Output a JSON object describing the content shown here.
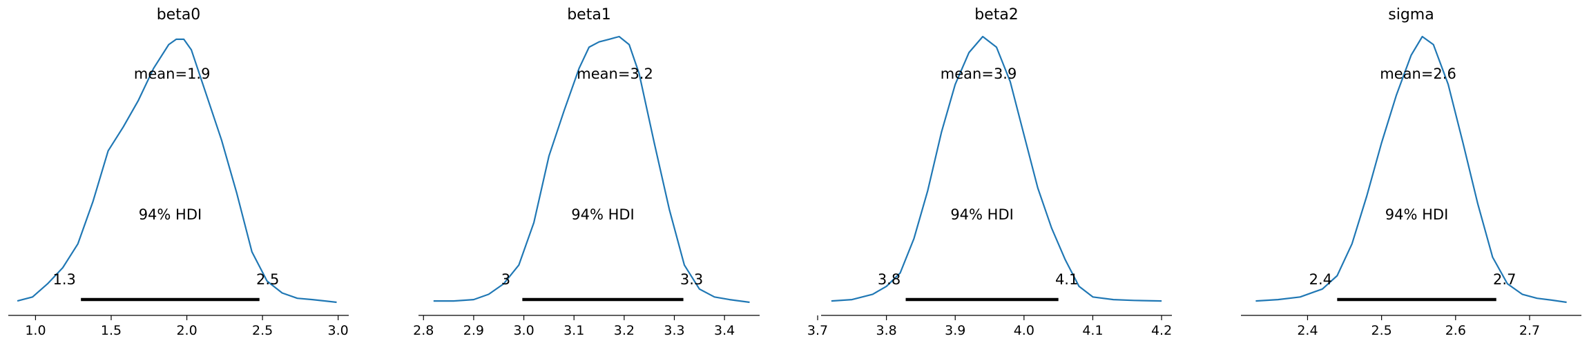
{
  "chart_data": [
    {
      "type": "area",
      "title": "beta0",
      "mean_label": "mean=1.9",
      "hdi_label": "94% HDI",
      "hdi": [
        1.3,
        2.48
      ],
      "hdi_tick_labels": [
        "1.3",
        "2.5"
      ],
      "xlim": [
        0.82,
        3.07
      ],
      "ticks": [
        1.0,
        1.5,
        2.0,
        2.5,
        3.0
      ],
      "tick_labels": [
        "1.0",
        "1.5",
        "2.0",
        "2.5",
        "3.0"
      ],
      "ylim": [
        0,
        1.0
      ],
      "color": "#1f77b4",
      "density": {
        "x": [
          0.88,
          0.98,
          1.08,
          1.18,
          1.28,
          1.38,
          1.48,
          1.58,
          1.68,
          1.78,
          1.88,
          1.93,
          1.98,
          2.03,
          2.13,
          2.23,
          2.33,
          2.43,
          2.53,
          2.63,
          2.73,
          2.83,
          2.93,
          2.99
        ],
        "y": [
          0.005,
          0.02,
          0.07,
          0.13,
          0.22,
          0.38,
          0.57,
          0.66,
          0.76,
          0.88,
          0.97,
          0.99,
          0.99,
          0.95,
          0.78,
          0.61,
          0.41,
          0.19,
          0.08,
          0.035,
          0.015,
          0.01,
          0.004,
          0.0
        ]
      }
    },
    {
      "type": "area",
      "title": "beta1",
      "mean_label": "mean=3.2",
      "hdi_label": "94% HDI",
      "hdi": [
        2.997,
        3.318
      ],
      "hdi_tick_labels": [
        "3",
        "3.3"
      ],
      "xlim": [
        2.79,
        3.47
      ],
      "ticks": [
        2.8,
        2.9,
        3.0,
        3.1,
        3.2,
        3.3,
        3.4
      ],
      "tick_labels": [
        "2.8",
        "2.9",
        "3.0",
        "3.1",
        "3.2",
        "3.3",
        "3.4"
      ],
      "ylim": [
        0,
        1.0
      ],
      "color": "#1f77b4",
      "density": {
        "x": [
          2.82,
          2.86,
          2.9,
          2.93,
          2.96,
          2.99,
          3.02,
          3.05,
          3.08,
          3.11,
          3.13,
          3.15,
          3.17,
          3.19,
          3.21,
          3.23,
          3.26,
          3.29,
          3.32,
          3.35,
          3.38,
          3.41,
          3.45
        ],
        "y": [
          0.005,
          0.005,
          0.01,
          0.03,
          0.07,
          0.14,
          0.3,
          0.55,
          0.72,
          0.88,
          0.96,
          0.98,
          0.99,
          1.0,
          0.97,
          0.86,
          0.6,
          0.35,
          0.14,
          0.05,
          0.02,
          0.01,
          0.0
        ]
      }
    },
    {
      "type": "area",
      "title": "beta2",
      "mean_label": "mean=3.9",
      "hdi_label": "94% HDI",
      "hdi": [
        3.828,
        4.05
      ],
      "hdi_tick_labels": [
        "3.8",
        "4.1"
      ],
      "xlim": [
        3.705,
        4.215
      ],
      "ticks": [
        3.7,
        3.8,
        3.9,
        4.0,
        4.1,
        4.2
      ],
      "tick_labels": [
        "3.7",
        "3.8",
        "3.9",
        "4.0",
        "4.1",
        "4.2"
      ],
      "ylim": [
        0,
        1.0
      ],
      "color": "#1f77b4",
      "density": {
        "x": [
          3.72,
          3.75,
          3.78,
          3.8,
          3.82,
          3.84,
          3.86,
          3.88,
          3.9,
          3.92,
          3.94,
          3.96,
          3.98,
          4.0,
          4.02,
          4.04,
          4.06,
          4.08,
          4.1,
          4.13,
          4.16,
          4.2
        ],
        "y": [
          0.005,
          0.01,
          0.03,
          0.06,
          0.11,
          0.24,
          0.42,
          0.64,
          0.82,
          0.94,
          1.0,
          0.96,
          0.83,
          0.63,
          0.43,
          0.28,
          0.16,
          0.06,
          0.02,
          0.01,
          0.007,
          0.005
        ]
      }
    },
    {
      "type": "area",
      "title": "sigma",
      "mean_label": "mean=2.6",
      "hdi_label": "94% HDI",
      "hdi": [
        2.44,
        2.655
      ],
      "hdi_tick_labels": [
        "2.4",
        "2.7"
      ],
      "xlim": [
        2.31,
        2.77
      ],
      "ticks": [
        2.4,
        2.5,
        2.6,
        2.7
      ],
      "tick_labels": [
        "2.4",
        "2.5",
        "2.6",
        "2.7"
      ],
      "ylim": [
        0,
        1.0
      ],
      "color": "#1f77b4",
      "density": {
        "x": [
          2.33,
          2.36,
          2.39,
          2.42,
          2.44,
          2.46,
          2.48,
          2.5,
          2.52,
          2.54,
          2.555,
          2.57,
          2.59,
          2.61,
          2.63,
          2.65,
          2.67,
          2.69,
          2.71,
          2.73,
          2.75
        ],
        "y": [
          0.005,
          0.01,
          0.02,
          0.05,
          0.1,
          0.22,
          0.4,
          0.6,
          0.78,
          0.93,
          1.0,
          0.97,
          0.82,
          0.6,
          0.37,
          0.17,
          0.07,
          0.03,
          0.015,
          0.008,
          0.0
        ]
      }
    }
  ]
}
